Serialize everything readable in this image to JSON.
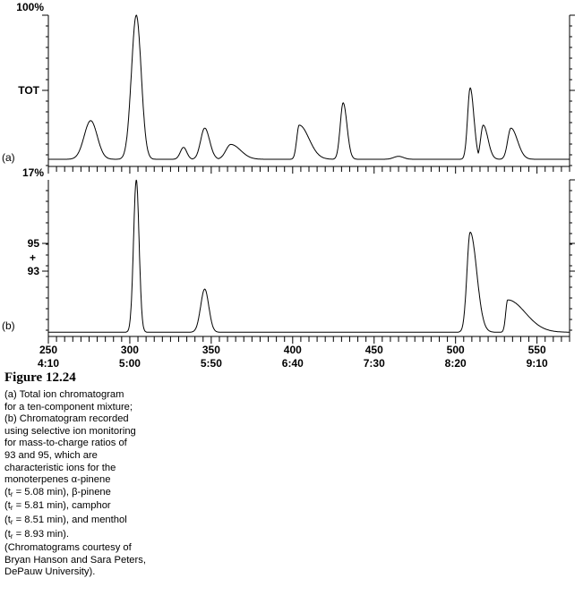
{
  "chart_data": [
    {
      "type": "line",
      "panel_label": "(a)",
      "ylabel_top": "100%",
      "ylabel_mid": "TOT",
      "ylabel_bottom": "17%",
      "xlim": [
        250,
        570
      ],
      "ylim": [
        0,
        100
      ],
      "baseline": 3,
      "peaks": [
        {
          "x": 276,
          "height": 26,
          "width": 4,
          "tail": 1
        },
        {
          "x": 304,
          "height": 97,
          "width": 3,
          "tail": 1
        },
        {
          "x": 333,
          "height": 8,
          "width": 2,
          "tail": 1
        },
        {
          "x": 346,
          "height": 21,
          "width": 2.5,
          "tail": 1.2
        },
        {
          "x": 362,
          "height": 10,
          "width": 3,
          "tail": 2
        },
        {
          "x": 404,
          "height": 23,
          "width": 1.5,
          "tail": 4
        },
        {
          "x": 431,
          "height": 38,
          "width": 1.8,
          "tail": 1.3
        },
        {
          "x": 465,
          "height": 2,
          "width": 3,
          "tail": 1
        },
        {
          "x": 509,
          "height": 48,
          "width": 1.6,
          "tail": 1.4
        },
        {
          "x": 517,
          "height": 23,
          "width": 1.6,
          "tail": 1.8
        },
        {
          "x": 534,
          "height": 21,
          "width": 2,
          "tail": 2
        }
      ]
    },
    {
      "type": "line",
      "panel_label": "(b)",
      "ylabel_a": "95",
      "ylabel_plus": "+",
      "ylabel_b": "93",
      "xlim": [
        250,
        570
      ],
      "ylim": [
        0,
        100
      ],
      "baseline": 1,
      "peaks": [
        {
          "x": 304,
          "height": 99,
          "width": 1.7,
          "tail": 1
        },
        {
          "x": 346,
          "height": 28,
          "width": 2.5,
          "tail": 1
        },
        {
          "x": 509,
          "height": 65,
          "width": 2.0,
          "tail": 2
        },
        {
          "x": 532,
          "height": 21,
          "width": 1.2,
          "tail": 9
        }
      ]
    }
  ],
  "x_axis": {
    "ticks": [
      {
        "value": 250,
        "scan": "250",
        "time": "4:10"
      },
      {
        "value": 300,
        "scan": "300",
        "time": "5:00"
      },
      {
        "value": 350,
        "scan": "350",
        "time": "5:50"
      },
      {
        "value": 400,
        "scan": "400",
        "time": "6:40"
      },
      {
        "value": 450,
        "scan": "450",
        "time": "7:30"
      },
      {
        "value": 500,
        "scan": "500",
        "time": "8:20"
      },
      {
        "value": 550,
        "scan": "550",
        "time": "9:10"
      }
    ]
  },
  "caption": {
    "figure_title": "Figure 12.24",
    "lines": [
      {
        "text": "(a) Total ion chromatogram"
      },
      {
        "text": "for a ten-component mixture;"
      },
      {
        "text": "(b) Chromatogram recorded"
      },
      {
        "text": "using selective ion monitoring"
      },
      {
        "text": "for mass-to-charge ratios of"
      },
      {
        "text": "93 and 95, which are"
      },
      {
        "text": "characteristic ions for the"
      },
      {
        "text": "monoterpenes α-pinene"
      },
      {
        "pre": "(t",
        "sub": "r",
        "post": " = 5.08 min), β-pinene"
      },
      {
        "pre": "(t",
        "sub": "r",
        "post": " = 5.81 min), camphor"
      },
      {
        "pre": "(t",
        "sub": "r",
        "post": " = 8.51 min), and menthol"
      },
      {
        "pre": "(t",
        "sub": "r",
        "post": " = 8.93 min)."
      },
      {
        "text": "(Chromatograms courtesy of"
      },
      {
        "text": "Bryan Hanson and Sara Peters,"
      },
      {
        "text": "DePauw University)."
      }
    ]
  }
}
